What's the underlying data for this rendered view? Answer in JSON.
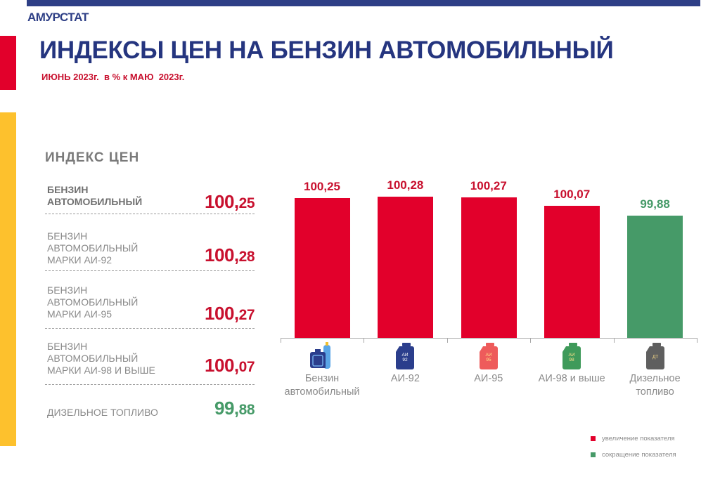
{
  "header": {
    "brand": "АМУРСТАТ",
    "title": "ИНДЕКСЫ ЦЕН НА БЕНЗИН АВТОМОБИЛЬНЫЙ",
    "subtitle": "ИЮНЬ 2023г.  в % к МАЮ  2023г."
  },
  "colors": {
    "brand_blue": "#2e3f86",
    "increase": "#e2002b",
    "increase_text": "#c8102e",
    "decrease": "#469a68",
    "accent_yellow": "#fdc12d"
  },
  "index_panel": {
    "heading": "ИНДЕКС ЦЕН",
    "rows": [
      {
        "label": "БЕНЗИН\nАВТОМОБИЛЬНЫЙ",
        "int": "100,",
        "frac": "25",
        "trend": "increase"
      },
      {
        "label": "БЕНЗИН\nАВТОМОБИЛЬНЫЙ\nМАРКИ АИ-92",
        "int": "100,",
        "frac": "28",
        "trend": "increase"
      },
      {
        "label": "БЕНЗИН\nАВТОМОБИЛЬНЫЙ\nМАРКИ АИ-95",
        "int": "100,",
        "frac": "27",
        "trend": "increase"
      },
      {
        "label": "БЕНЗИН\nАВТОМОБИЛЬНЫЙ\nМАРКИ АИ-98 И ВЫШЕ",
        "int": "100,",
        "frac": "07",
        "trend": "increase"
      },
      {
        "label": "ДИЗЕЛЬНОЕ ТОПЛИВО",
        "int": "99,",
        "frac": "88",
        "trend": "decrease"
      }
    ]
  },
  "chart_data": {
    "type": "bar",
    "title": "ИНДЕКСЫ ЦЕН НА БЕНЗИН АВТОМОБИЛЬНЫЙ",
    "subtitle": "ИЮНЬ 2023г. в % к МАЮ 2023г.",
    "categories": [
      "Бензин автомобильный",
      "АИ-92",
      "АИ-95",
      "АИ-98 и выше",
      "Дизельное топливо"
    ],
    "category_labels": [
      "Бензин\nавтомобильный",
      "АИ-92",
      "АИ-95",
      "АИ-98 и выше",
      "Дизельное\nтопливо"
    ],
    "values": [
      100.25,
      100.28,
      100.27,
      100.07,
      99.88
    ],
    "value_labels": [
      "100,25",
      "100,28",
      "100,27",
      "100,07",
      "99,88"
    ],
    "bar_colors": [
      "#e2002b",
      "#e2002b",
      "#e2002b",
      "#e2002b",
      "#469a68"
    ],
    "icons": [
      {
        "name": "canister-and-gas-cylinder-icon",
        "text": ""
      },
      {
        "name": "canister-ai92-icon",
        "text": "АИ\n92",
        "color": "#2b3e8c",
        "text_color": "#ffffff"
      },
      {
        "name": "canister-ai95-icon",
        "text": "АИ\n95",
        "color": "#ee5b5b",
        "text_color": "#ffe08a"
      },
      {
        "name": "canister-ai98-icon",
        "text": "АИ\n98",
        "color": "#3f9a5a",
        "text_color": "#ffe08a"
      },
      {
        "name": "canister-diesel-icon",
        "text": "ДТ",
        "color": "#5f5f5f",
        "text_color": "#ffe08a"
      }
    ],
    "xlabel": "",
    "ylabel": "",
    "grid": false,
    "legend": [
      {
        "label": "увеличение показателя",
        "color": "#e2002b"
      },
      {
        "label": "сокращение показателя",
        "color": "#469a68"
      }
    ],
    "legend_position": "bottom-right"
  }
}
